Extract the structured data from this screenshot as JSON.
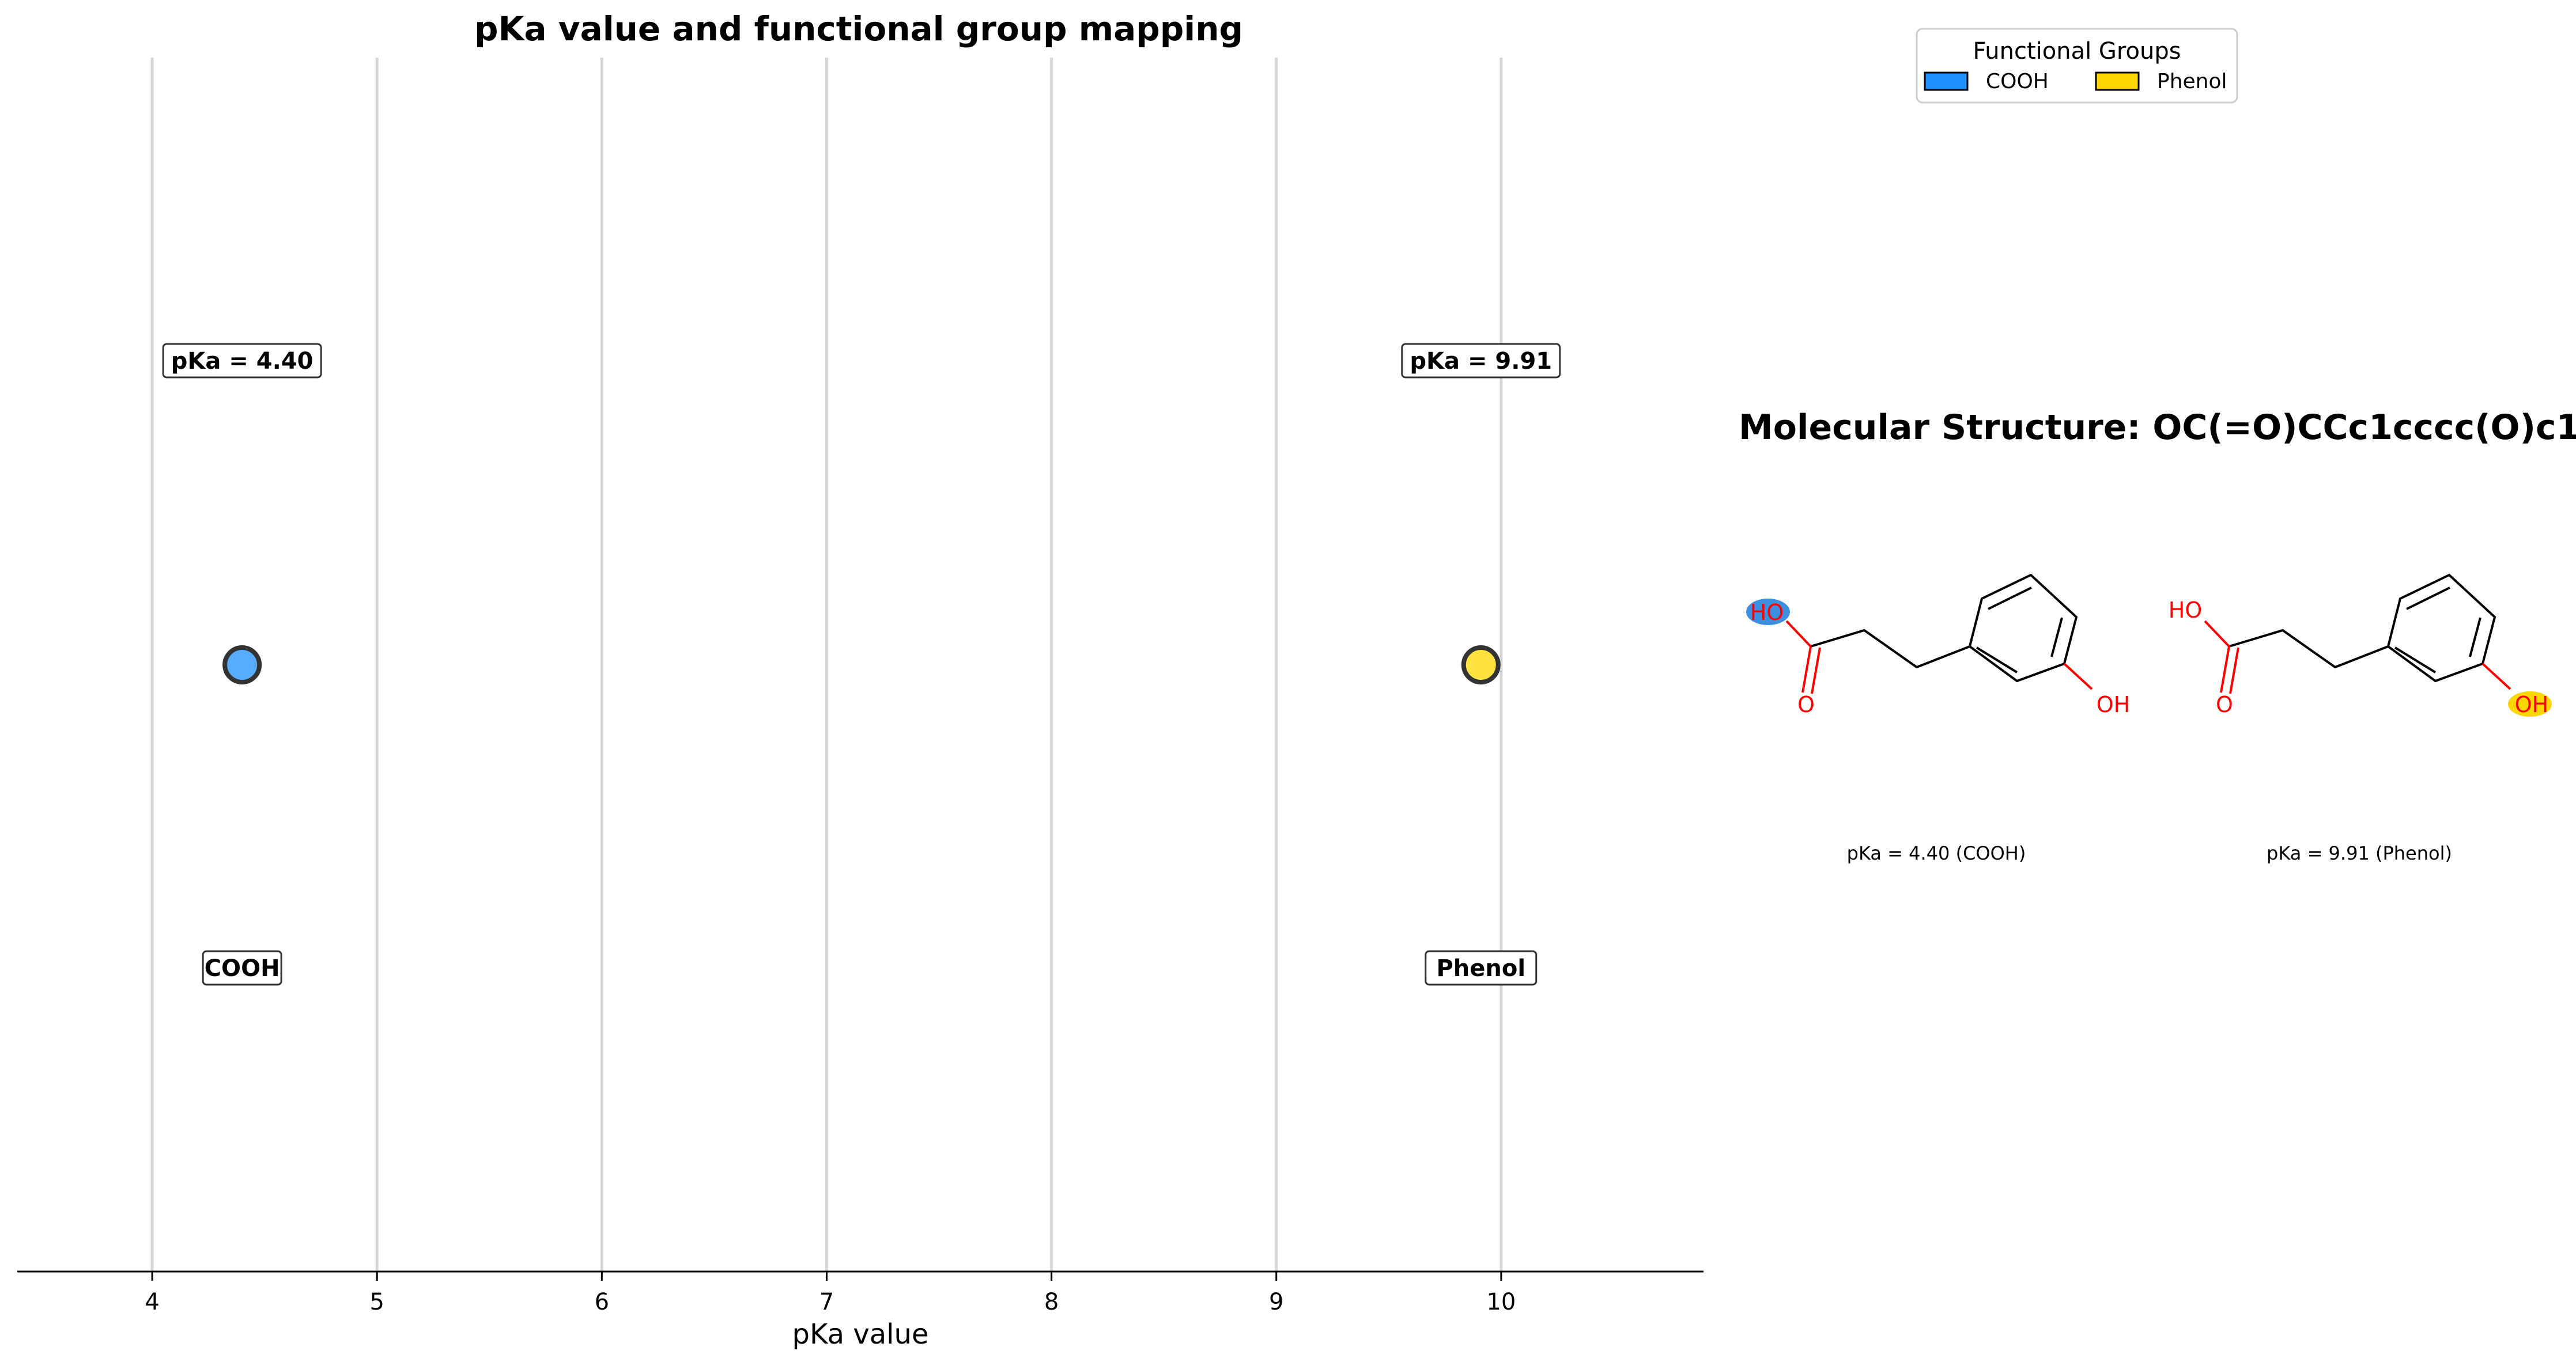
{
  "chart_data": [
    {
      "type": "scatter",
      "title": "pKa value and functional group mapping",
      "xlabel": "pKa value",
      "ylabel": "",
      "xlim": [
        3.4,
        10.9
      ],
      "xticks": [
        4,
        5,
        6,
        7,
        8,
        9,
        10
      ],
      "grid": "vertical",
      "points": [
        {
          "x": 4.4,
          "group": "COOH",
          "value_label": "pKa = 4.40",
          "group_label": "COOH",
          "color": "#1e90ff"
        },
        {
          "x": 9.91,
          "group": "Phenol",
          "value_label": "pKa = 9.91",
          "group_label": "Phenol",
          "color": "#ffd700"
        }
      ]
    }
  ],
  "legend": {
    "title": "Functional Groups",
    "placement": "top-right",
    "items": [
      {
        "label": "COOH",
        "color": "#1e90ff"
      },
      {
        "label": "Phenol",
        "color": "#ffd700"
      }
    ]
  },
  "structure": {
    "title": "Molecular Structure: OC(=O)CCc1cccc(O)c1",
    "atoms": {
      "ho": "HO",
      "o": "O",
      "oh": "OH"
    },
    "captions": [
      "pKa = 4.40 (COOH)",
      "pKa = 9.91 (Phenol)"
    ],
    "highlight_colors": {
      "cooh": "#3d8fe0",
      "phenol": "#ffd700"
    },
    "atom_color": "#ff0000"
  }
}
